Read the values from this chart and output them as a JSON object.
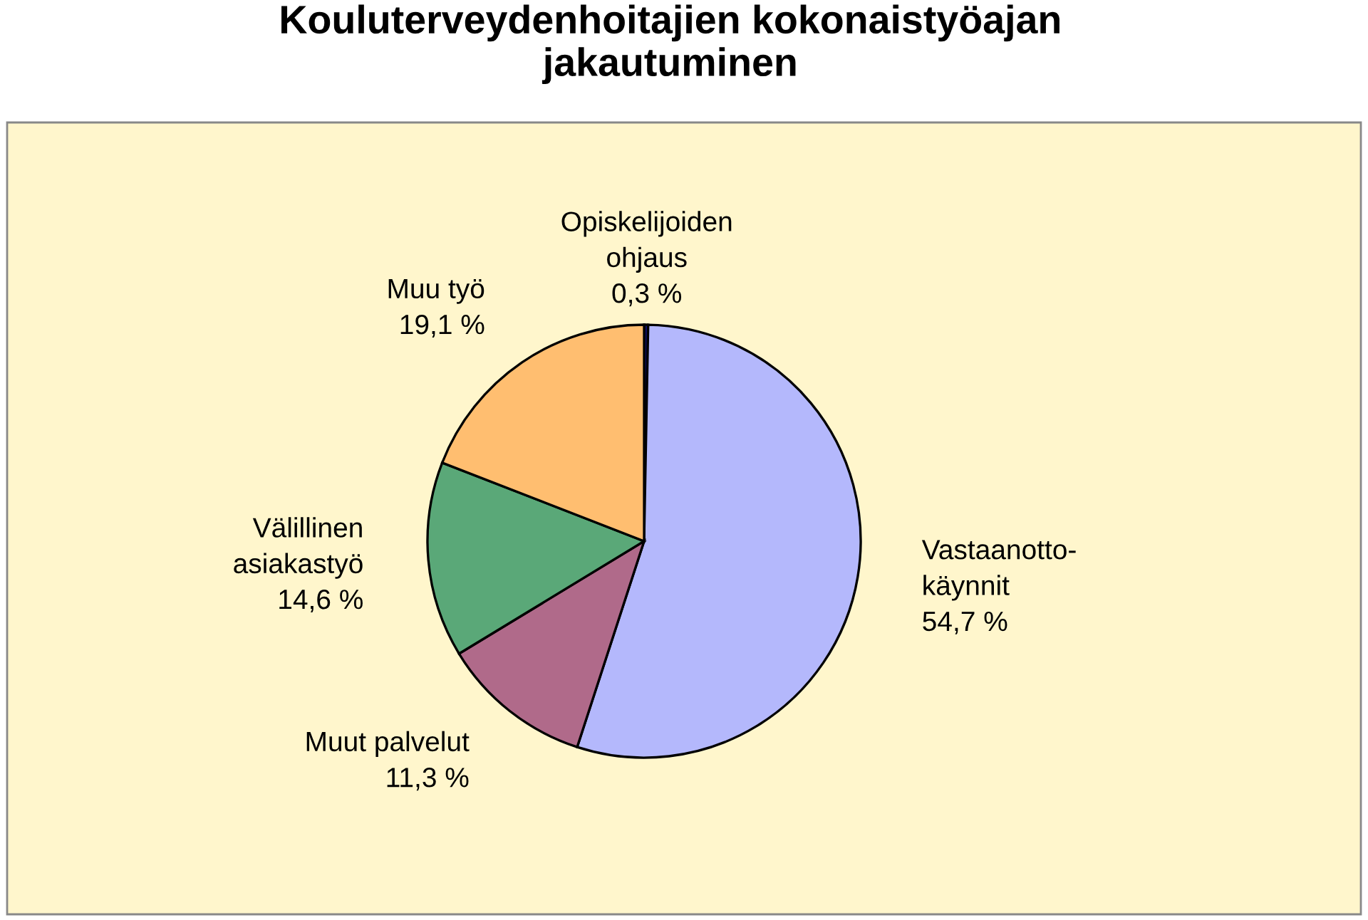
{
  "chart_data": {
    "type": "pie",
    "title": "Kouluterveydenhoitajien kokonaistyöajan\njakautuminen",
    "categories": [
      "Opiskelijoiden\nohjaus",
      "Vastaanotto-\nkäynnit",
      "Muut palvelut",
      "Välillinen\nasiakastyö",
      "Muu työ"
    ],
    "values": [
      0.3,
      54.7,
      11.3,
      14.6,
      19.1
    ],
    "value_labels": [
      "0,3 %",
      "54,7 %",
      "11,3 %",
      "14,6 %",
      "19,1 %"
    ],
    "colors": [
      "#10106a",
      "#b4b8fc",
      "#b06a8a",
      "#5aa878",
      "#ffbe70"
    ]
  }
}
